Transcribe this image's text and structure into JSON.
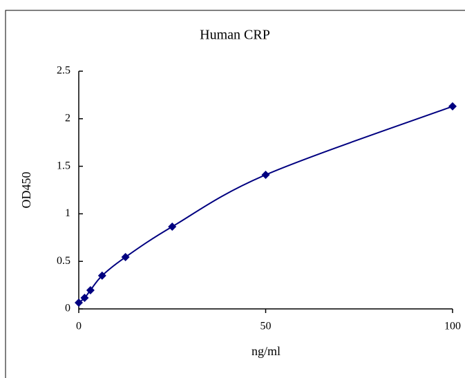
{
  "chart_data": {
    "type": "scatter",
    "title": "Human CRP",
    "x_label": "ng/ml",
    "y_label": "OD450",
    "series": [
      {
        "name": "Human CRP",
        "color": "#000080",
        "x": [
          0,
          1.5625,
          3.125,
          6.25,
          12.5,
          25,
          50,
          100
        ],
        "values": [
          0.065,
          0.116,
          0.196,
          0.35,
          0.545,
          0.865,
          1.41,
          2.13
        ]
      }
    ],
    "smooth_line": true,
    "xlim": [
      0,
      100
    ],
    "xticks": [
      0,
      50,
      100
    ],
    "ylim": [
      0,
      2.5
    ],
    "yticks": [
      0,
      0.5,
      1,
      1.5,
      2,
      2.5
    ],
    "grid": false
  }
}
